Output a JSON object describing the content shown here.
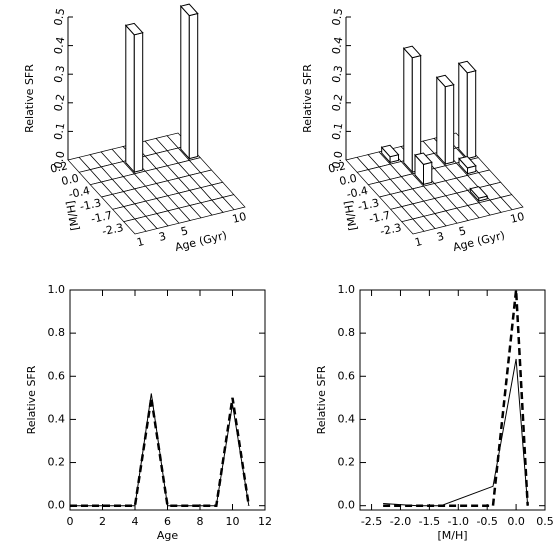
{
  "chart_data": [
    {
      "type": "bar3d",
      "zlabel": "Relative SFR",
      "ylabel": "[M/H]",
      "xlabel": "Age (Gyr)",
      "x_categories": [
        "1",
        null,
        "3",
        null,
        "5",
        null,
        null,
        null,
        null,
        "10"
      ],
      "y_categories": [
        "0.2",
        "0.0",
        "-0.4",
        "-1.3",
        "-1.7",
        "-2.3"
      ],
      "zlim": [
        0,
        0.5
      ],
      "zticks": [
        {
          "value": 0,
          "label": "0.0"
        },
        0.1,
        0.2,
        0.3,
        0.4,
        0.5
      ],
      "values": [
        [
          0,
          0,
          0,
          0,
          0,
          0,
          0,
          0,
          0,
          0
        ],
        [
          0,
          0,
          0,
          0,
          0.48,
          0,
          0,
          0,
          0,
          0.5
        ],
        [
          0,
          0,
          0,
          0,
          0,
          0,
          0,
          0,
          0,
          0
        ],
        [
          0,
          0,
          0,
          0,
          0,
          0,
          0,
          0,
          0,
          0
        ],
        [
          0,
          0,
          0,
          0,
          0,
          0,
          0,
          0,
          0,
          0
        ],
        [
          0,
          0,
          0,
          0,
          0,
          0,
          0,
          0,
          0,
          0
        ]
      ]
    },
    {
      "type": "bar3d",
      "zlabel": "Relative SFR",
      "ylabel": "[M/H]",
      "xlabel": "Age (Gyr)",
      "x_categories": [
        "1",
        null,
        "3",
        null,
        "5",
        null,
        null,
        null,
        null,
        "10"
      ],
      "y_categories": [
        "0.2",
        "0.0",
        "-0.4",
        "-1.3",
        "-1.7",
        "-2.3"
      ],
      "zlim": [
        0,
        0.5
      ],
      "zticks": [
        {
          "value": 0,
          "label": "0.0"
        },
        0.1,
        0.2,
        0.3,
        0.4,
        0.5
      ],
      "values": [
        [
          0,
          0,
          0,
          0.02,
          0,
          0,
          0,
          0,
          0,
          0
        ],
        [
          0,
          0,
          0,
          0,
          0.4,
          0,
          0,
          0.27,
          0,
          0.3
        ],
        [
          0,
          0,
          0,
          0,
          0.07,
          0,
          0,
          0,
          0.02,
          0
        ],
        [
          0,
          0,
          0,
          0,
          0,
          0,
          0,
          0,
          0,
          0
        ],
        [
          0,
          0,
          0,
          0,
          0,
          0,
          0,
          0.01,
          0,
          0
        ],
        [
          0,
          0,
          0,
          0,
          0,
          0,
          0,
          0,
          0,
          0
        ]
      ]
    },
    {
      "type": "line",
      "xlabel": "Age",
      "ylabel": "Relative SFR",
      "xlim": [
        0,
        12
      ],
      "xticks": [
        0,
        2,
        4,
        6,
        8,
        10,
        12
      ],
      "ylim": [
        -0.02,
        1.0
      ],
      "yticks": [
        {
          "value": 0,
          "label": "0.0"
        },
        0.2,
        0.4,
        0.6,
        0.8,
        {
          "value": 1,
          "label": "1.0"
        }
      ],
      "x": [
        0,
        1,
        2,
        3,
        4,
        5,
        6,
        7,
        8,
        9,
        10,
        11
      ],
      "series": [
        {
          "color": "#000000",
          "style": "solid",
          "values": [
            0,
            0,
            0,
            0,
            0,
            0.52,
            0,
            0,
            0,
            0,
            0.47,
            0
          ]
        },
        {
          "color": "#000000",
          "style": "dashed",
          "values": [
            0,
            0,
            0,
            0,
            0,
            0.5,
            0,
            0,
            0,
            0,
            0.5,
            0
          ]
        }
      ]
    },
    {
      "type": "line",
      "xlabel": "[M/H]",
      "ylabel": "Relative SFR",
      "xlim": [
        -2.7,
        0.5
      ],
      "xticks": [
        -2.5,
        {
          "value": -2,
          "label": "-2.0"
        },
        -1.5,
        {
          "value": -1,
          "label": "-1.0"
        },
        -0.5,
        {
          "value": 0,
          "label": "0.0"
        },
        0.5
      ],
      "ylim": [
        -0.02,
        1.0
      ],
      "yticks": [
        {
          "value": 0,
          "label": "0.0"
        },
        0.2,
        0.4,
        0.6,
        0.8,
        {
          "value": 1,
          "label": "1.0"
        }
      ],
      "x": [
        -2.3,
        -1.7,
        -1.3,
        -0.4,
        0.0,
        0.2
      ],
      "series": [
        {
          "color": "#000000",
          "style": "solid",
          "values": [
            0.01,
            0.0,
            0.0,
            0.09,
            0.68,
            0.0
          ]
        },
        {
          "color": "#000000",
          "style": "dashed",
          "values": [
            0,
            0,
            0,
            0,
            1.0,
            0
          ]
        }
      ]
    }
  ]
}
